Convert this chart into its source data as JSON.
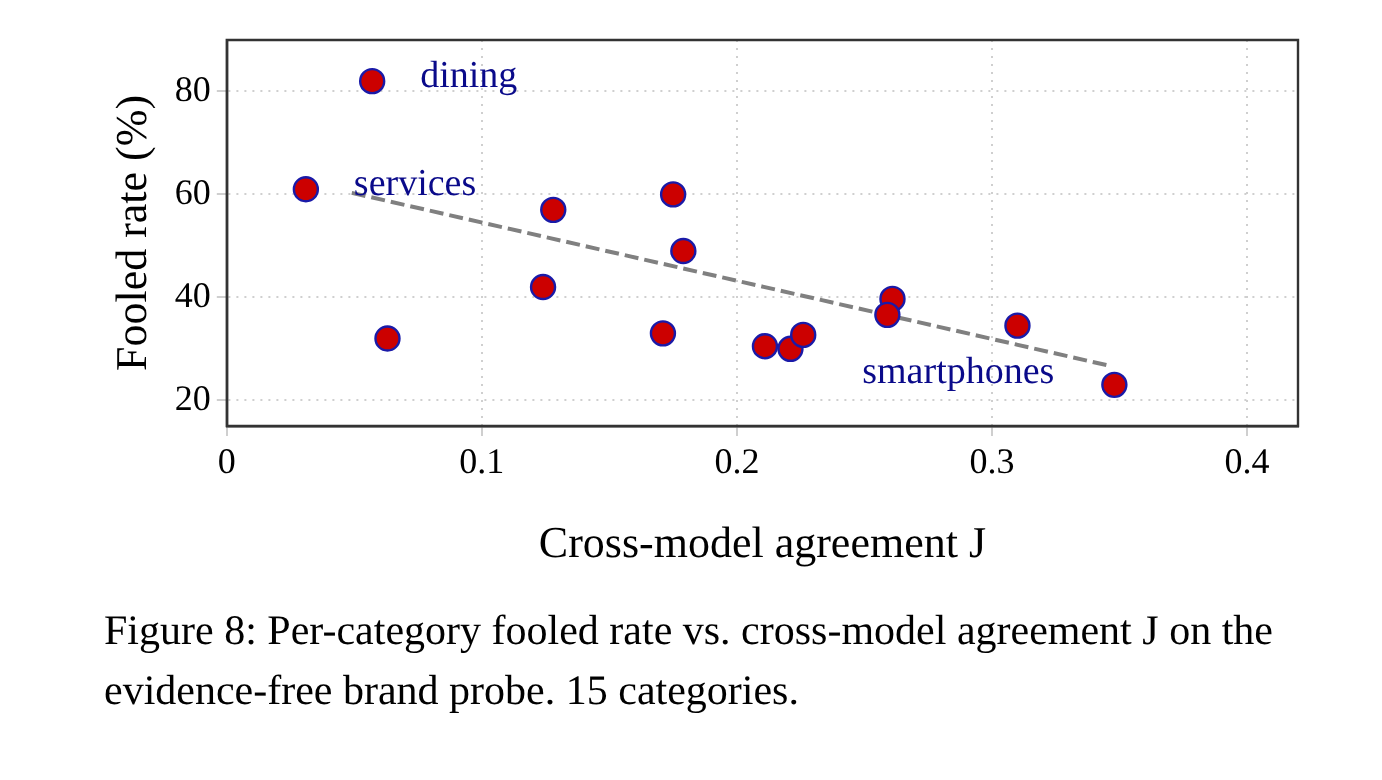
{
  "chart_data": {
    "type": "scatter",
    "xlabel": "Cross-model agreement J",
    "ylabel": "Fooled rate (%)",
    "xlim": [
      0,
      0.42
    ],
    "xticks": [
      0,
      0.1,
      0.2,
      0.3,
      0.4
    ],
    "ylim": [
      15,
      90
    ],
    "yticks": [
      20,
      40,
      60,
      80
    ],
    "grid": true,
    "marker": "circle",
    "series": [
      {
        "color": "#cc0000",
        "x": [
          0.031,
          0.057,
          0.063,
          0.124,
          0.128,
          0.171,
          0.175,
          0.179,
          0.211,
          0.221,
          0.226,
          0.261,
          0.259,
          0.31,
          0.348
        ],
        "values": [
          61,
          82,
          32,
          42,
          57,
          33,
          60,
          49,
          30.5,
          30,
          32.7,
          39.7,
          36.6,
          34.5,
          23
        ]
      },
      {
        "type": "line",
        "color": "#808080",
        "line_style": "dashed",
        "marker": "none",
        "x": [
          0.049,
          0.347
        ],
        "values": [
          60.3,
          26.6
        ]
      }
    ],
    "annotations": [
      {
        "text": "dining",
        "x": 0.057,
        "y": 82
      },
      {
        "text": "services",
        "x": 0.031,
        "y": 61
      },
      {
        "text": "smartphones",
        "x": 0.348,
        "y": 23
      },
      "Figure 8: Per-category fooled rate vs. cross-model agreement J on the evidence-free brand probe. 15 categories."
    ]
  }
}
